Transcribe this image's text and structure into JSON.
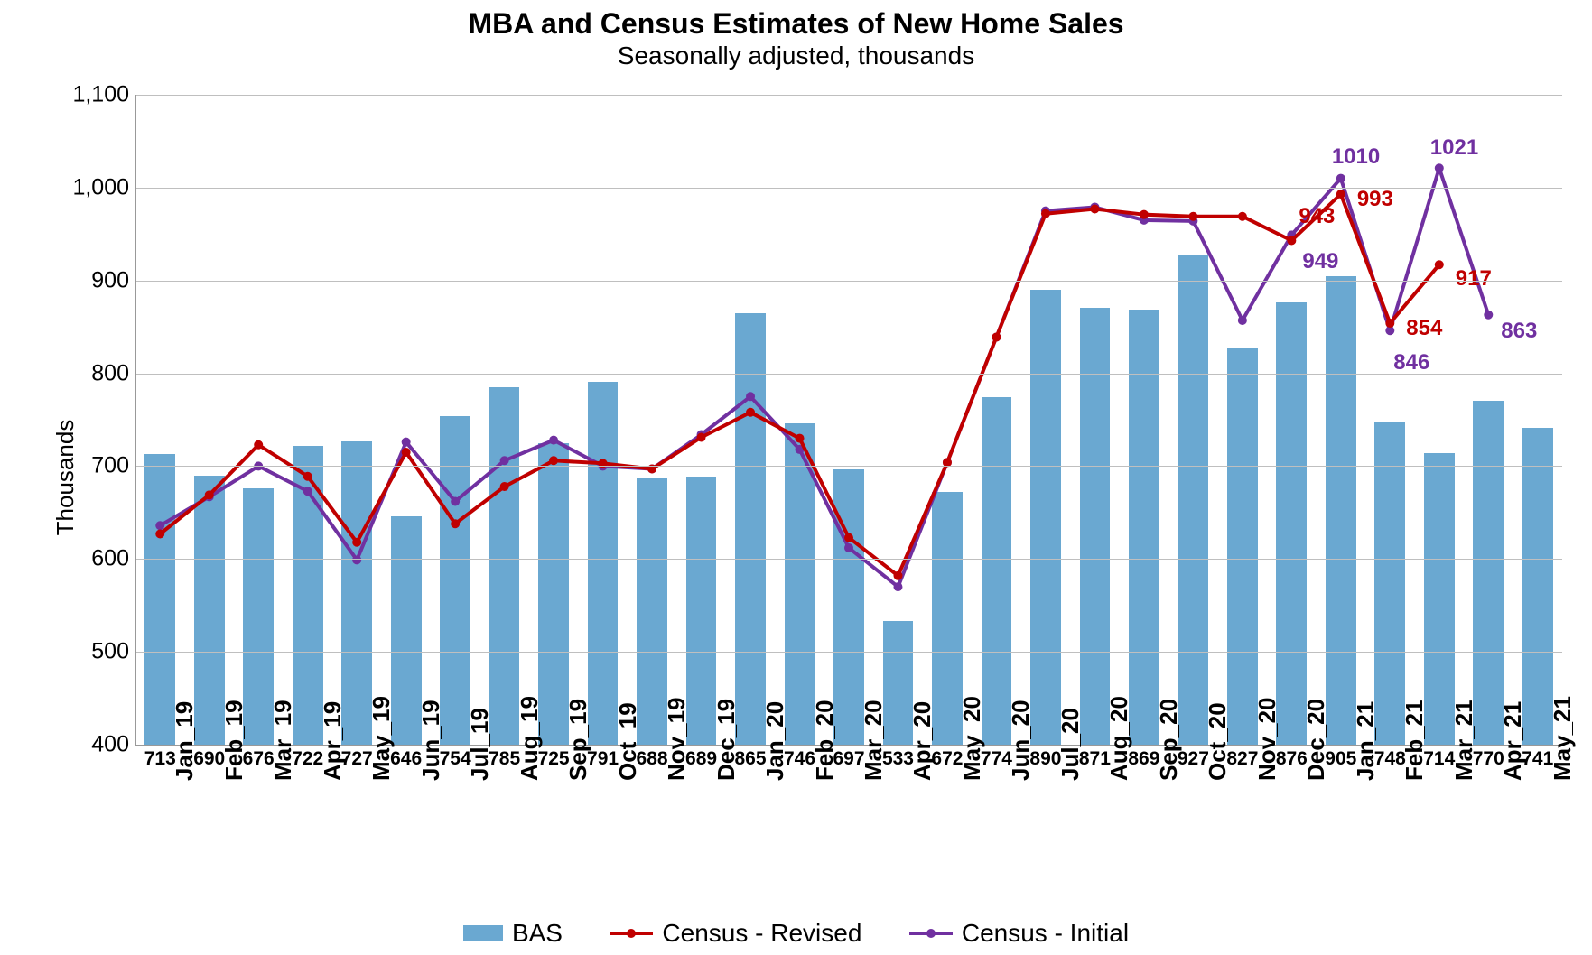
{
  "chart": {
    "type": "bar+line",
    "title": "MBA and Census Estimates of New Home Sales",
    "subtitle": "Seasonally adjusted, thousands",
    "title_fontsize": 32,
    "subtitle_fontsize": 28,
    "ylabel": "Thousands",
    "label_fontsize": 26,
    "background_color": "#ffffff",
    "grid_color": "#bfbfbf",
    "axis_color": "#999999",
    "ylim": [
      400,
      1100
    ],
    "ytick_step": 100,
    "yticks": [
      400,
      500,
      600,
      700,
      800,
      900,
      1000,
      1100
    ],
    "categories": [
      "Jan_19",
      "Feb_19",
      "Mar_19",
      "Apr_19",
      "May_19",
      "Jun_19",
      "Jul_19",
      "Aug_19",
      "Sep_19",
      "Oct_19",
      "Nov_19",
      "Dec_19",
      "Jan_20",
      "Feb_20",
      "Mar_20",
      "Apr_20",
      "May_20",
      "Jun_20",
      "Jul_20",
      "Aug_20",
      "Sep_20",
      "Oct_20",
      "Nov_20",
      "Dec_20",
      "Jan_21",
      "Feb_21",
      "Mar_21",
      "Apr_21",
      "May_21"
    ],
    "series": {
      "bas": {
        "label": "BAS",
        "type": "bar",
        "color": "#6aa8d1",
        "bar_width": 0.62,
        "values": [
          713,
          690,
          676,
          722,
          727,
          646,
          754,
          785,
          725,
          791,
          688,
          689,
          865,
          746,
          697,
          533,
          672,
          774,
          890,
          871,
          869,
          927,
          827,
          876,
          905,
          748,
          714,
          770,
          741
        ],
        "value_label_fontsize": 21,
        "value_label_color": "#000000"
      },
      "census_revised": {
        "label": "Census - Revised",
        "type": "line",
        "color": "#c00000",
        "line_width": 4,
        "marker_size": 10,
        "marker_shape": "circle",
        "values": [
          627,
          669,
          723,
          689,
          618,
          715,
          638,
          678,
          706,
          703,
          697,
          731,
          758,
          730,
          623,
          582,
          704,
          839,
          972,
          977,
          971,
          969,
          969,
          943,
          993,
          854,
          917,
          null,
          null
        ],
        "data_labels": [
          {
            "i": 23,
            "text": "943",
            "dx": 8,
            "dy": -40
          },
          {
            "i": 24,
            "text": "993",
            "dx": 18,
            "dy": -8
          },
          {
            "i": 25,
            "text": "854",
            "dx": 18,
            "dy": -8
          },
          {
            "i": 26,
            "text": "917",
            "dx": 18,
            "dy": 2
          }
        ]
      },
      "census_initial": {
        "label": "Census - Initial",
        "type": "line",
        "color": "#7030a0",
        "line_width": 4,
        "marker_size": 10,
        "marker_shape": "circle",
        "values": [
          636,
          667,
          700,
          673,
          599,
          726,
          662,
          706,
          728,
          700,
          697,
          734,
          775,
          718,
          612,
          570,
          704,
          839,
          975,
          979,
          965,
          964,
          857,
          949,
          1010,
          846,
          1021,
          863,
          null
        ],
        "data_labels": [
          {
            "i": 23,
            "text": "949",
            "dx": 12,
            "dy": 16
          },
          {
            "i": 24,
            "text": "1010",
            "dx": -10,
            "dy": -38
          },
          {
            "i": 25,
            "text": "846",
            "dx": 4,
            "dy": 22
          },
          {
            "i": 26,
            "text": "1021",
            "dx": -10,
            "dy": -36
          },
          {
            "i": 27,
            "text": "863",
            "dx": 14,
            "dy": 4
          }
        ]
      }
    },
    "data_label_fontsize": 24,
    "xtick_fontsize": 26,
    "ytick_fontsize": 25,
    "legend_fontsize": 28,
    "xtick_rotation_deg": -90
  }
}
